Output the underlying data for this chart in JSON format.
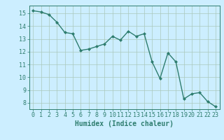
{
  "x": [
    0,
    1,
    2,
    3,
    4,
    5,
    6,
    7,
    8,
    9,
    10,
    11,
    12,
    13,
    14,
    15,
    16,
    17,
    18,
    19,
    20,
    21,
    22,
    23
  ],
  "y": [
    15.2,
    15.1,
    14.9,
    14.3,
    13.5,
    13.4,
    12.1,
    12.2,
    12.4,
    12.6,
    13.2,
    12.9,
    13.6,
    13.2,
    13.4,
    11.2,
    9.9,
    11.9,
    11.2,
    8.3,
    8.7,
    8.8,
    8.1,
    7.7
  ],
  "line_color": "#2e7d6e",
  "marker": "D",
  "markersize": 2.0,
  "linewidth": 1.0,
  "bg_color": "#cceeff",
  "grid_color": "#aac8bb",
  "xlabel": "Humidex (Indice chaleur)",
  "xlabel_fontsize": 7,
  "tick_fontsize": 6,
  "ylim": [
    7.5,
    15.6
  ],
  "xlim": [
    -0.5,
    23.5
  ],
  "yticks": [
    8,
    9,
    10,
    11,
    12,
    13,
    14,
    15
  ],
  "xticks": [
    0,
    1,
    2,
    3,
    4,
    5,
    6,
    7,
    8,
    9,
    10,
    11,
    12,
    13,
    14,
    15,
    16,
    17,
    18,
    19,
    20,
    21,
    22,
    23
  ]
}
